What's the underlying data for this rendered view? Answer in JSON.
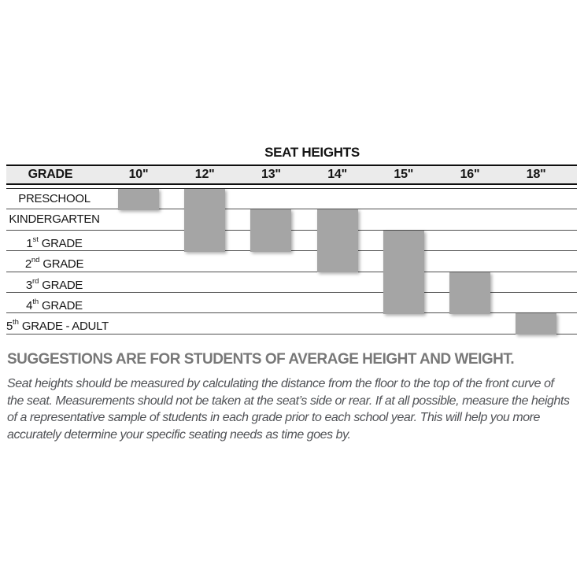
{
  "chart_data": {
    "type": "table",
    "title": "SEAT HEIGHTS",
    "grade_column_label": "GRADE",
    "columns": [
      "10\"",
      "12\"",
      "13\"",
      "14\"",
      "15\"",
      "16\"",
      "18\""
    ],
    "rows": [
      {
        "prefix": "PRESCHOOL",
        "ordinal": "",
        "suffix": ""
      },
      {
        "prefix": "KINDERGARTEN",
        "ordinal": "",
        "suffix": ""
      },
      {
        "prefix": "1",
        "ordinal": "st",
        "suffix": " GRADE"
      },
      {
        "prefix": "2",
        "ordinal": "nd",
        "suffix": " GRADE"
      },
      {
        "prefix": "3",
        "ordinal": "rd",
        "suffix": " GRADE"
      },
      {
        "prefix": "4",
        "ordinal": "th",
        "suffix": " GRADE"
      },
      {
        "prefix": "5",
        "ordinal": "th",
        "suffix": " GRADE - ADULT"
      }
    ],
    "ranges": [
      {
        "column": "10\"",
        "from_row": 0,
        "to_row": 0
      },
      {
        "column": "12\"",
        "from_row": 0,
        "to_row": 2
      },
      {
        "column": "13\"",
        "from_row": 1,
        "to_row": 2
      },
      {
        "column": "14\"",
        "from_row": 1,
        "to_row": 3
      },
      {
        "column": "15\"",
        "from_row": 2,
        "to_row": 5
      },
      {
        "column": "16\"",
        "from_row": 4,
        "to_row": 5
      },
      {
        "column": "18\"",
        "from_row": 6,
        "to_row": 6
      }
    ],
    "bar_color": "#a5a5a5",
    "header_bg": "#ebebeb",
    "grid": "horizontal-lines",
    "legend_position": "none"
  },
  "note": {
    "heading": "SUGGESTIONS ARE FOR STUDENTS OF AVERAGE HEIGHT AND WEIGHT.",
    "body": "Seat heights should be measured by calculating the distance from the floor to the top of the front curve of the seat.  Measurements should not be taken at the seat’s side or rear.  If at all possible, measure the heights of a representative sample of students in each grade prior to each school year.  This will help you more accurately determine your specific seating needs as time goes by."
  }
}
